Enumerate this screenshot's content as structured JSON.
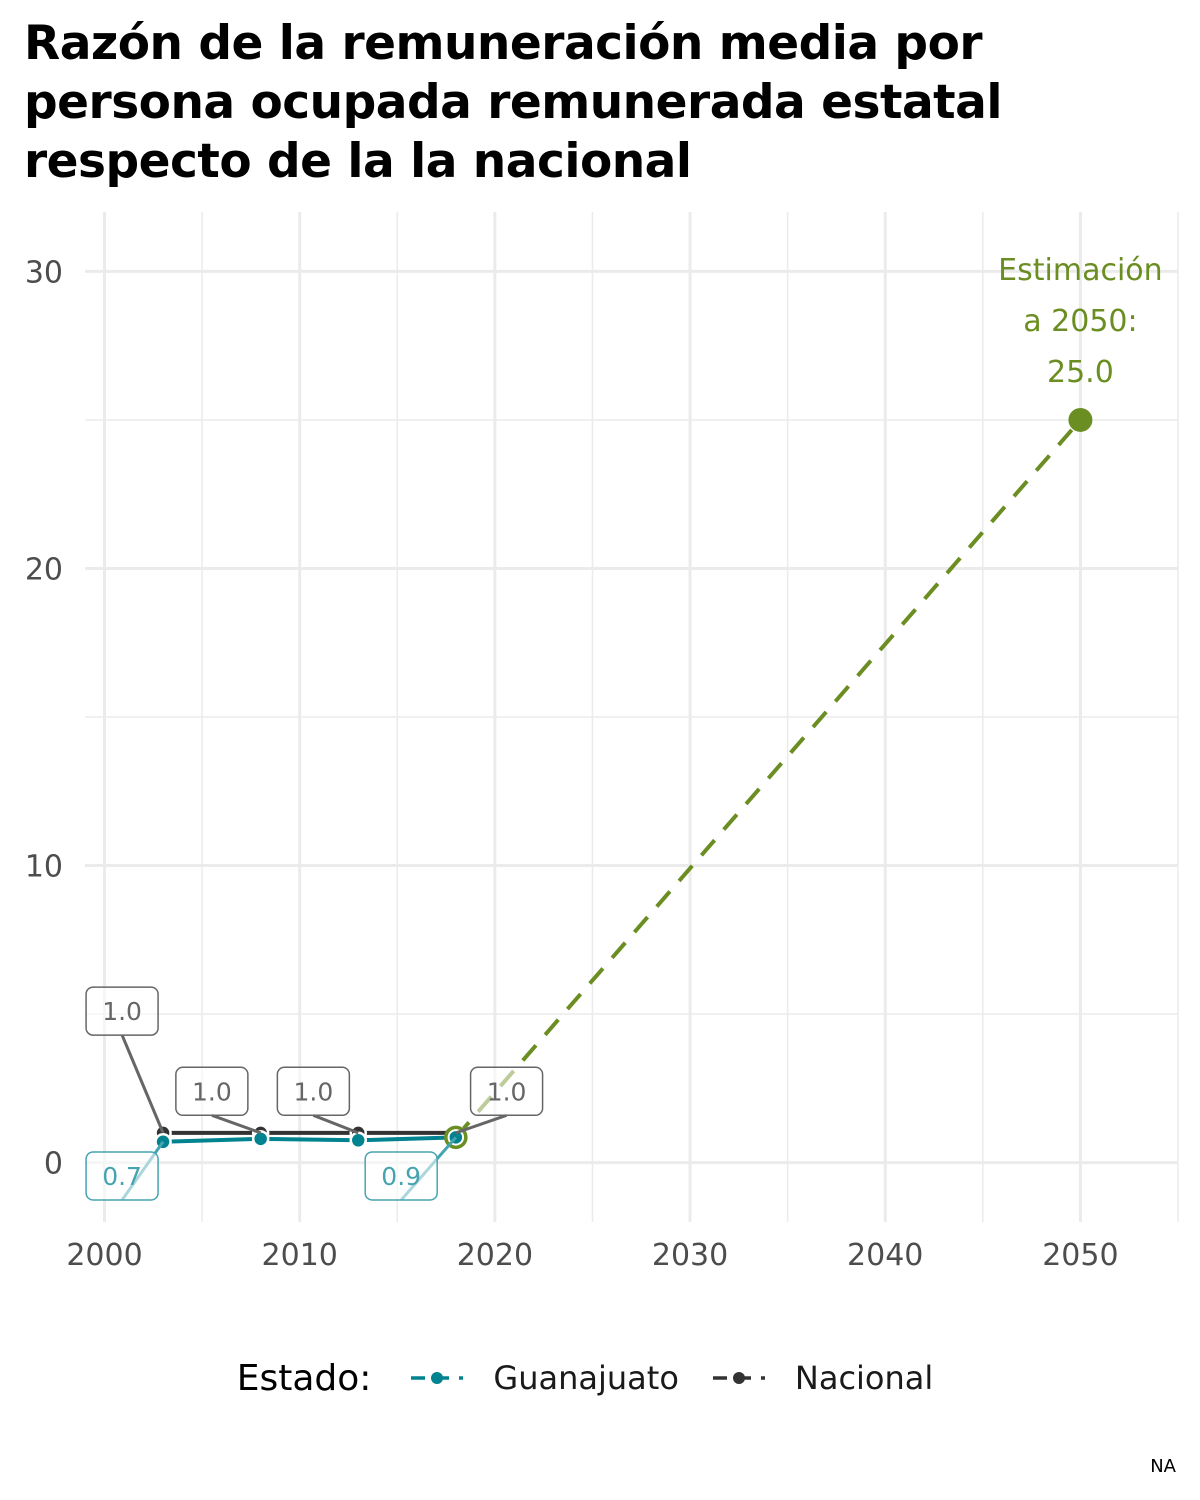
{
  "chart_data": {
    "type": "line",
    "title": "Razón de la remuneración media por persona ocupada remunerada estatal respecto de la la nacional",
    "xlabel": "",
    "ylabel": "",
    "xlim": [
      1999,
      2055
    ],
    "ylim": [
      -2,
      32
    ],
    "x_ticks": [
      2000,
      2010,
      2020,
      2030,
      2040,
      2050
    ],
    "y_ticks": [
      0,
      10,
      20,
      30
    ],
    "grid": true,
    "legend_position": "bottom",
    "legend_title": "Estado:",
    "series": [
      {
        "name": "Guanajuato",
        "color": "#00838f",
        "x": [
          2003,
          2008,
          2013,
          2018
        ],
        "y": [
          0.7,
          0.8,
          0.75,
          0.85
        ]
      },
      {
        "name": "Nacional",
        "color": "#333333",
        "x": [
          2003,
          2008,
          2013,
          2018
        ],
        "y": [
          1.0,
          1.0,
          1.0,
          1.0
        ]
      }
    ],
    "data_labels": [
      {
        "series": "Nacional",
        "x": 2003,
        "text": "1.0"
      },
      {
        "series": "Nacional",
        "x": 2008,
        "text": "1.0"
      },
      {
        "series": "Nacional",
        "x": 2013,
        "text": "1.0"
      },
      {
        "series": "Nacional",
        "x": 2018,
        "text": "1.0"
      },
      {
        "series": "Guanajuato",
        "x": 2003,
        "text": "0.7"
      },
      {
        "series": "Guanajuato",
        "x": 2018,
        "text": "0.9"
      }
    ],
    "projection": {
      "color": "#6b8e23",
      "from": {
        "x": 2018,
        "y": 0.85
      },
      "to": {
        "x": 2050,
        "y": 25.0
      },
      "label_lines": [
        "Estimación",
        "a 2050:",
        "25.0"
      ]
    },
    "caption": "NA"
  }
}
